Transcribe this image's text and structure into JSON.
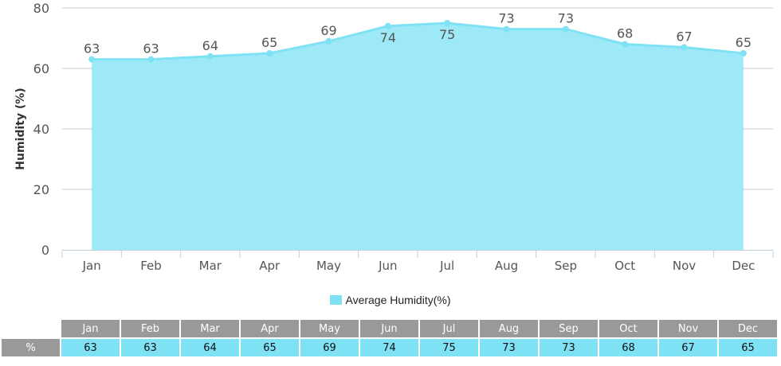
{
  "chart_data": {
    "type": "area",
    "title": "",
    "xlabel": "",
    "ylabel": "Humidity (%)",
    "categories": [
      "Jan",
      "Feb",
      "Mar",
      "Apr",
      "May",
      "Jun",
      "Jul",
      "Aug",
      "Sep",
      "Oct",
      "Nov",
      "Dec"
    ],
    "series": [
      {
        "name": "Average Humidity(%)",
        "values": [
          63,
          63,
          64,
          65,
          69,
          74,
          75,
          73,
          73,
          68,
          67,
          65
        ]
      }
    ],
    "ylim": [
      0,
      80
    ],
    "yticks": [
      0,
      20,
      40,
      60,
      80
    ],
    "grid": true,
    "legend": "bottom-center",
    "colors": {
      "fill": "#9ee9f7",
      "line": "#7ee2f4",
      "header": "#999999"
    }
  },
  "table": {
    "row_label": "%"
  }
}
